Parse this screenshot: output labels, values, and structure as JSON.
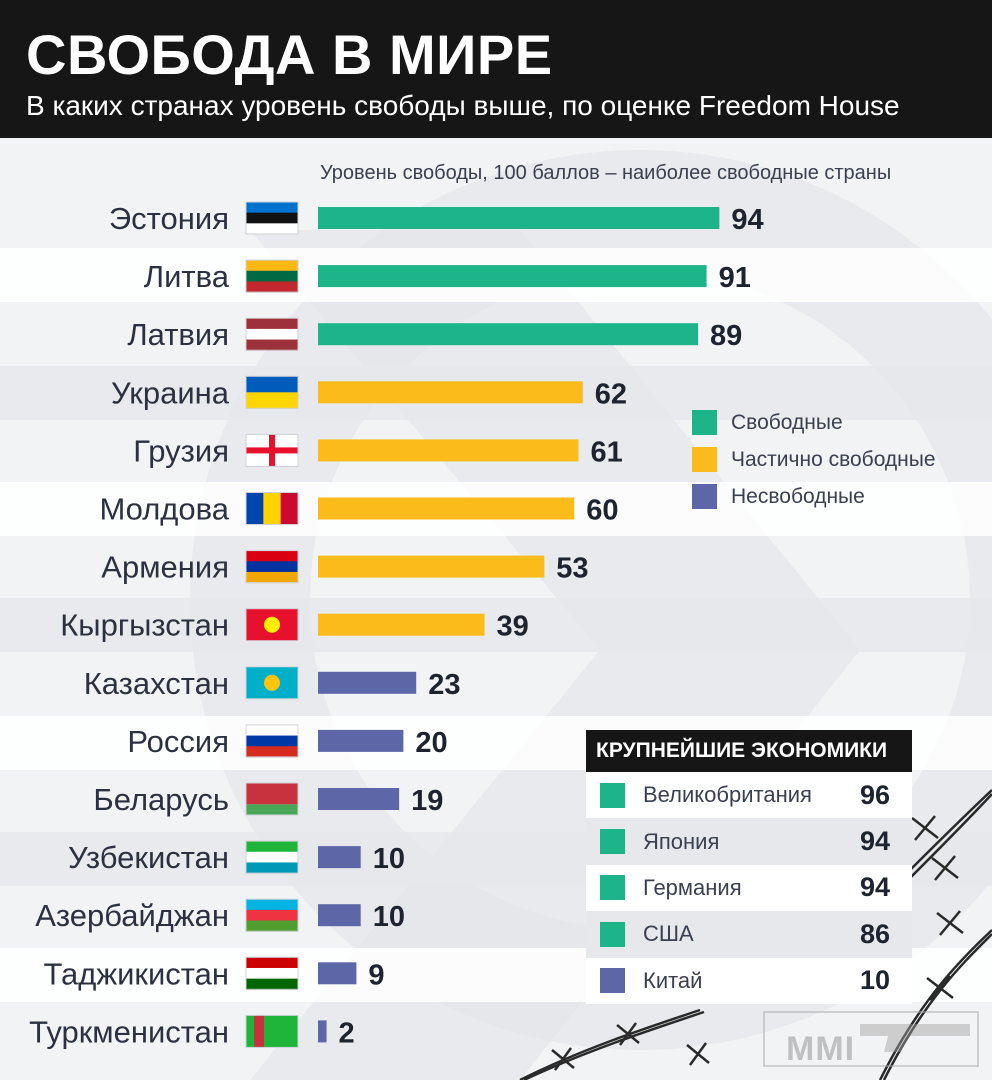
{
  "header": {
    "title": "СВОБОДА В МИРЕ",
    "subtitle": "В каких странах уровень свободы выше, по оценке Freedom House"
  },
  "axis_caption": "Уровень свободы, 100 баллов – наиболее свободные страны",
  "colors": {
    "free": "#1db48a",
    "partly": "#fbbb1b",
    "notfree": "#5d67a8",
    "header_bg": "#161616"
  },
  "chart_data": {
    "type": "bar",
    "orientation": "horizontal",
    "categories": [
      "Эстония",
      "Литва",
      "Латвия",
      "Украина",
      "Грузия",
      "Молдова",
      "Армения",
      "Кыргызстан",
      "Казахстан",
      "Россия",
      "Беларусь",
      "Узбекистан",
      "Азербайджан",
      "Таджикистан",
      "Туркменистан"
    ],
    "values": [
      94,
      91,
      89,
      62,
      61,
      60,
      53,
      39,
      23,
      20,
      19,
      10,
      10,
      9,
      2
    ],
    "status": [
      "free",
      "free",
      "free",
      "partly",
      "partly",
      "partly",
      "partly",
      "partly",
      "notfree",
      "notfree",
      "notfree",
      "notfree",
      "notfree",
      "notfree",
      "notfree"
    ],
    "xlim": [
      0,
      100
    ],
    "legend": [
      {
        "key": "free",
        "label": "Свободные"
      },
      {
        "key": "partly",
        "label": "Частично свободные"
      },
      {
        "key": "notfree",
        "label": "Несвободные"
      }
    ],
    "legend_position": "right"
  },
  "economies": {
    "title": "КРУПНЕЙШИЕ ЭКОНОМИКИ",
    "rows": [
      {
        "name": "Великобритания",
        "value": "96",
        "status": "free"
      },
      {
        "name": "Япония",
        "value": "94",
        "status": "free"
      },
      {
        "name": "Германия",
        "value": "94",
        "status": "free"
      },
      {
        "name": "США",
        "value": "86",
        "status": "free"
      },
      {
        "name": "Китай",
        "value": "10",
        "status": "notfree"
      }
    ]
  },
  "watermark": "MMI"
}
